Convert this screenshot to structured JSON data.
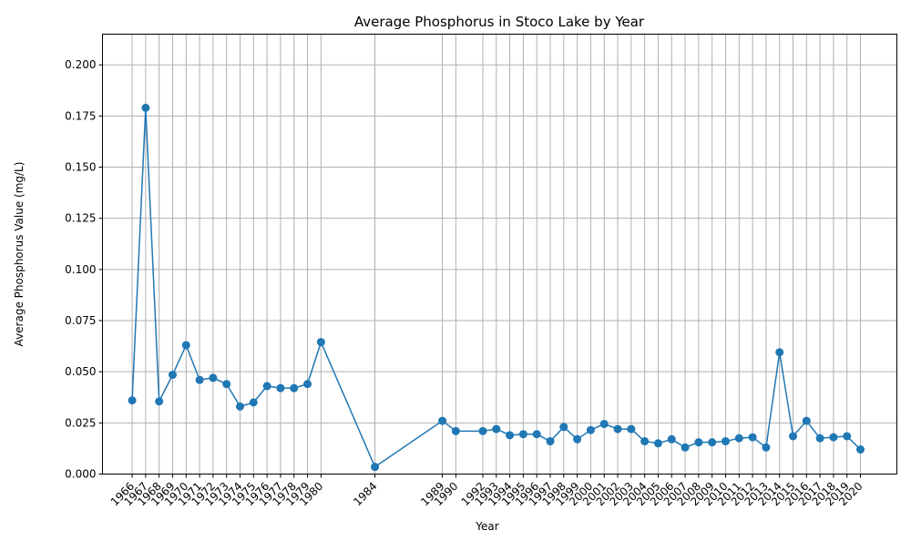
{
  "chart_data": {
    "type": "line",
    "title": "Average Phosphorus in Stoco Lake by Year",
    "xlabel": "Year",
    "ylabel": "Average Phosphorus Value (mg/L)",
    "xlim": [
      1963.8,
      2022.7
    ],
    "ylim": [
      0,
      0.215
    ],
    "grid": true,
    "line_color": "#1f77b4",
    "y_ticks": [
      0.0,
      0.025,
      0.05,
      0.075,
      0.1,
      0.125,
      0.15,
      0.175,
      0.2
    ],
    "y_tick_labels": [
      "0.000",
      "0.025",
      "0.050",
      "0.075",
      "0.100",
      "0.125",
      "0.150",
      "0.175",
      "0.200"
    ],
    "x": [
      1966,
      1967,
      1968,
      1969,
      1970,
      1971,
      1972,
      1973,
      1974,
      1975,
      1976,
      1977,
      1978,
      1979,
      1980,
      1984,
      1989,
      1990,
      1992,
      1993,
      1994,
      1995,
      1996,
      1997,
      1998,
      1999,
      2000,
      2001,
      2002,
      2003,
      2004,
      2005,
      2006,
      2007,
      2008,
      2009,
      2010,
      2011,
      2012,
      2013,
      2014,
      2015,
      2016,
      2017,
      2018,
      2019,
      2020
    ],
    "x_tick_labels": [
      "1966",
      "1967",
      "1968",
      "1969",
      "1970",
      "1971",
      "1972",
      "1973",
      "1974",
      "1975",
      "1976",
      "1977",
      "1978",
      "1979",
      "1980",
      "1984",
      "1989",
      "1990",
      "1992",
      "1993",
      "1994",
      "1995",
      "1996",
      "1997",
      "1998",
      "1999",
      "2000",
      "2001",
      "2002",
      "2003",
      "2004",
      "2005",
      "2006",
      "2007",
      "2008",
      "2009",
      "2010",
      "2011",
      "2012",
      "2013",
      "2014",
      "2015",
      "2016",
      "2017",
      "2018",
      "2019",
      "2020"
    ],
    "y": [
      0.036,
      0.179,
      0.0355,
      0.0485,
      0.063,
      0.046,
      0.047,
      0.044,
      0.033,
      0.035,
      0.043,
      0.042,
      0.042,
      0.044,
      0.0645,
      0.0035,
      0.026,
      0.021,
      0.021,
      0.022,
      0.019,
      0.0195,
      0.0195,
      0.016,
      0.023,
      0.017,
      0.0215,
      0.0245,
      0.022,
      0.022,
      0.016,
      0.015,
      0.017,
      0.013,
      0.0155,
      0.0155,
      0.016,
      0.0175,
      0.018,
      0.013,
      0.0595,
      0.0185,
      0.026,
      0.0175,
      0.018,
      0.0185,
      0.012
    ]
  }
}
